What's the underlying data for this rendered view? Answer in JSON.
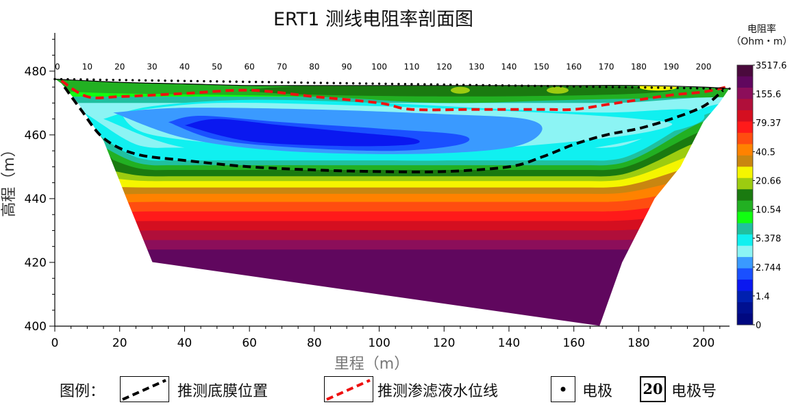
{
  "chart_data": {
    "type": "heatmap",
    "title": "ERT1  测线电阻率剖面图",
    "xlabel": "里程（m）",
    "ylabel": "高程（m）",
    "xlim": [
      0,
      208
    ],
    "ylim": [
      400,
      492
    ],
    "x_ticks": [
      "0",
      "20",
      "40",
      "60",
      "80",
      "100",
      "120",
      "140",
      "160",
      "180",
      "200"
    ],
    "y_ticks": [
      "400",
      "420",
      "440",
      "460",
      "480"
    ],
    "colorbar": {
      "title_line1": "电阻率",
      "title_line2": "（Ohm・m）",
      "labels": [
        "3517.6",
        "155.6",
        "79.37",
        "40.5",
        "20.66",
        "10.54",
        "5.378",
        "2.744",
        "1.4",
        "0"
      ],
      "colors": [
        "#4a0a3c",
        "#60075e",
        "#8c0e5a",
        "#b00f3a",
        "#d40f20",
        "#ff1a1a",
        "#ff4d10",
        "#ff8200",
        "#c98610",
        "#f5f500",
        "#9ccc10",
        "#1a7a10",
        "#22b022",
        "#11ff11",
        "#20c0a0",
        "#10f0f0",
        "#8cf4f4",
        "#3a9aff",
        "#1a50ff",
        "#0a18f0",
        "#0020b0",
        "#001090",
        "#000880"
      ]
    },
    "electrode_labels": [
      "0",
      "10",
      "20",
      "30",
      "40",
      "50",
      "60",
      "70",
      "80",
      "90",
      "100",
      "110",
      "120",
      "130",
      "140",
      "150",
      "160",
      "170",
      "180",
      "190",
      "200"
    ],
    "inferred_liner_bottom": [
      [
        3,
        475
      ],
      [
        8,
        468
      ],
      [
        15,
        459
      ],
      [
        25,
        454
      ],
      [
        40,
        452
      ],
      [
        60,
        450
      ],
      [
        80,
        449
      ],
      [
        100,
        448.5
      ],
      [
        120,
        448.5
      ],
      [
        140,
        450
      ],
      [
        150,
        453
      ],
      [
        160,
        457
      ],
      [
        170,
        460
      ],
      [
        180,
        462
      ],
      [
        190,
        465
      ],
      [
        200,
        469
      ],
      [
        206,
        474
      ]
    ],
    "inferred_leachate_level": [
      [
        2,
        477
      ],
      [
        10,
        472
      ],
      [
        20,
        472
      ],
      [
        40,
        473
      ],
      [
        60,
        474
      ],
      [
        80,
        472
      ],
      [
        100,
        470
      ],
      [
        110,
        468
      ],
      [
        130,
        468
      ],
      [
        150,
        468
      ],
      [
        160,
        468
      ],
      [
        170,
        469.5
      ],
      [
        180,
        471
      ],
      [
        190,
        472.5
      ],
      [
        200,
        473.5
      ],
      [
        207,
        475
      ]
    ]
  },
  "legend": {
    "heading": "图例：",
    "liner_label": "推测底膜位置",
    "leachate_label": "推测渗滤液水位线",
    "electrode_label": "电极",
    "electrode_number_sample": "20",
    "electrode_number_label": "电极号"
  },
  "colors": {
    "liner_line": "#000000",
    "leachate_line": "#ee1111"
  }
}
